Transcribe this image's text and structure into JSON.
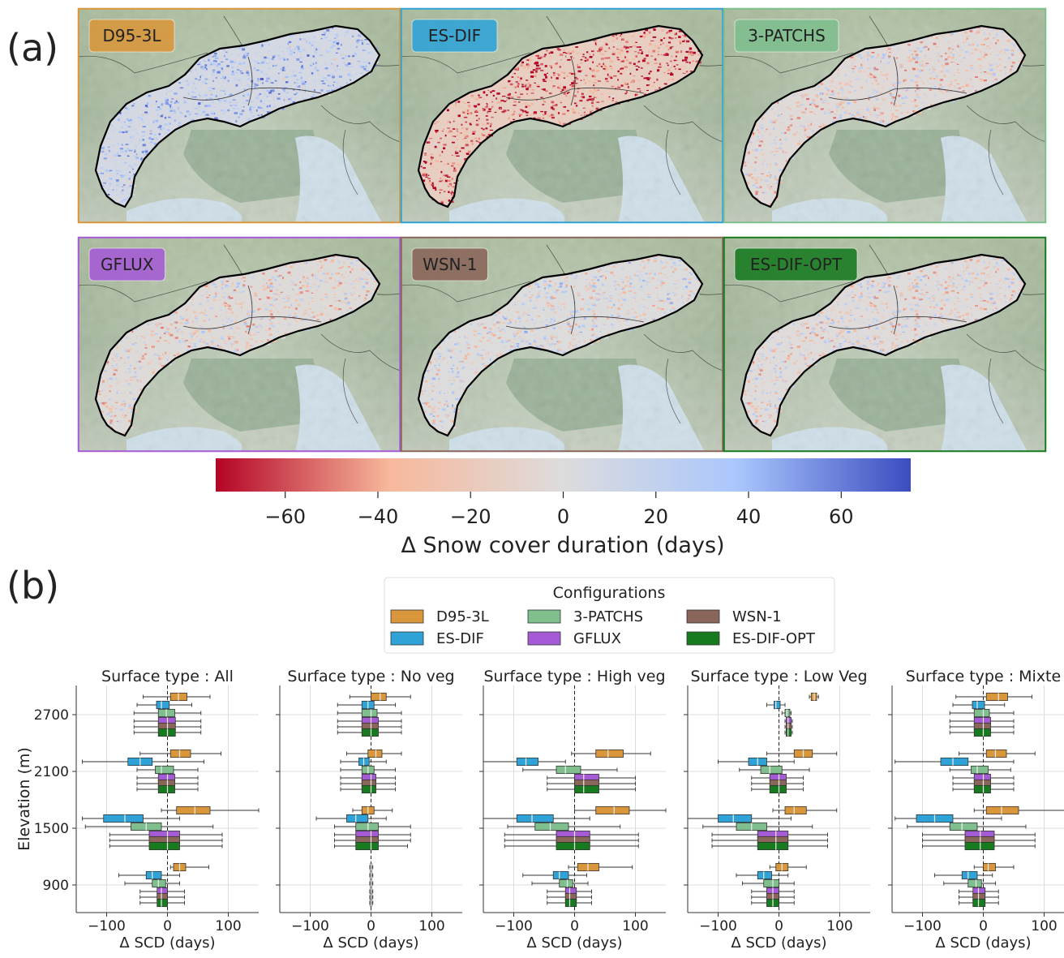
{
  "panel_labels": {
    "a": "(a)",
    "b": "(b)"
  },
  "map_configs": [
    {
      "name": "D95-3L",
      "color": "#D9963B",
      "bias": 22
    },
    {
      "name": "ES-DIF",
      "color": "#2FA3D8",
      "bias": -45
    },
    {
      "name": "3-PATCHS",
      "color": "#7FBF8E",
      "bias": -8
    },
    {
      "name": "GFLUX",
      "color": "#A55BD6",
      "bias": -6
    },
    {
      "name": "WSN-1",
      "color": "#8A655A",
      "bias": 2
    },
    {
      "name": "ES-DIF-OPT",
      "color": "#177A1F",
      "bias": -3
    }
  ],
  "colorbar": {
    "label": "Δ Snow cover duration (days)",
    "ticks": [
      "−60",
      "−40",
      "−20",
      "0",
      "20",
      "40",
      "60"
    ],
    "tick_values": [
      -60,
      -40,
      -20,
      0,
      20,
      40,
      60
    ],
    "range": [
      -75,
      75
    ],
    "colors": [
      "#B40426",
      "#F7B89C",
      "#DDDCDC",
      "#AAC7FD",
      "#3B4CC0"
    ]
  },
  "legend": {
    "title": "Configurations",
    "entries": [
      "D95-3L",
      "3-PATCHS",
      "WSN-1",
      "ES-DIF",
      "GFLUX",
      "ES-DIF-OPT"
    ]
  },
  "chart_data": {
    "type": "boxplot",
    "orientation": "horizontal",
    "ylabel": "Elevation (m)",
    "xlabel": "Δ SCD (days)",
    "y_categories": [
      900,
      1500,
      2100,
      2700
    ],
    "ytick_labels": [
      "900",
      "1500",
      "2100",
      "2700"
    ],
    "xlim": [
      -150,
      150
    ],
    "xticks": [
      -100,
      0,
      100
    ],
    "xtick_labels": [
      "−100",
      "0",
      "100"
    ],
    "series_order": [
      "D95-3L",
      "ES-DIF",
      "3-PATCHS",
      "GFLUX",
      "WSN-1",
      "ES-DIF-OPT"
    ],
    "series_colors": [
      "#D9963B",
      "#2FA3D8",
      "#7FBF8E",
      "#A55BD6",
      "#8A655A",
      "#177A1F"
    ],
    "panels": [
      {
        "title": "Surface type : All",
        "boxes": {
          "900": [
            [
              5,
              10,
              20,
              30,
              68
            ],
            [
              -80,
              -35,
              -25,
              -10,
              20
            ],
            [
              -70,
              -25,
              -15,
              -3,
              20
            ],
            [
              -45,
              -17,
              -10,
              0,
              28
            ],
            [
              -45,
              -17,
              -10,
              0,
              28
            ],
            [
              -45,
              -17,
              -10,
              0,
              28
            ]
          ],
          "1500": [
            [
              -10,
              15,
              45,
              70,
              150
            ],
            [
              -140,
              -105,
              -70,
              -40,
              20
            ],
            [
              -135,
              -60,
              -35,
              -10,
              75
            ],
            [
              -95,
              -30,
              0,
              20,
              90
            ],
            [
              -95,
              -30,
              0,
              20,
              90
            ],
            [
              -95,
              -30,
              0,
              20,
              90
            ]
          ],
          "2100": [
            [
              -45,
              5,
              20,
              38,
              88
            ],
            [
              -140,
              -65,
              -45,
              -25,
              60
            ],
            [
              -50,
              -20,
              -10,
              10,
              50
            ],
            [
              -50,
              -15,
              0,
              12,
              50
            ],
            [
              -50,
              -15,
              0,
              12,
              50
            ],
            [
              -50,
              -15,
              0,
              12,
              50
            ]
          ],
          "2700": [
            [
              -40,
              5,
              18,
              32,
              70
            ],
            [
              -50,
              -18,
              -10,
              3,
              40
            ],
            [
              -55,
              -15,
              -2,
              12,
              55
            ],
            [
              -55,
              -15,
              0,
              13,
              55
            ],
            [
              -55,
              -15,
              0,
              13,
              55
            ],
            [
              -55,
              -15,
              0,
              13,
              55
            ]
          ]
        }
      },
      {
        "title": "Surface type : No veg",
        "boxes": {
          "900": [
            [
              -2,
              -1,
              0,
              1,
              3
            ],
            [
              -2,
              -1,
              0,
              1,
              3
            ],
            [
              -2,
              -1,
              0,
              1,
              3
            ],
            [
              -2,
              -1,
              0,
              1,
              3
            ],
            [
              -2,
              -1,
              0,
              1,
              3
            ],
            [
              -2,
              -1,
              0,
              1,
              3
            ]
          ],
          "1500": [
            [
              -30,
              -15,
              -5,
              5,
              35
            ],
            [
              -90,
              -40,
              -25,
              -5,
              25
            ],
            [
              -60,
              -25,
              -5,
              12,
              65
            ],
            [
              -60,
              -25,
              0,
              12,
              65
            ],
            [
              -60,
              -25,
              0,
              12,
              65
            ],
            [
              -60,
              -25,
              0,
              12,
              60
            ]
          ],
          "2100": [
            [
              -40,
              -5,
              8,
              18,
              50
            ],
            [
              -50,
              -20,
              -12,
              -3,
              25
            ],
            [
              -50,
              -15,
              -5,
              5,
              40
            ],
            [
              -50,
              -15,
              0,
              8,
              40
            ],
            [
              -50,
              -15,
              0,
              8,
              40
            ],
            [
              -50,
              -15,
              0,
              8,
              40
            ]
          ],
          "2700": [
            [
              -35,
              0,
              15,
              25,
              65
            ],
            [
              -55,
              -15,
              -5,
              5,
              40
            ],
            [
              -55,
              -15,
              0,
              10,
              50
            ],
            [
              -55,
              -15,
              0,
              12,
              50
            ],
            [
              -55,
              -15,
              0,
              12,
              50
            ],
            [
              -55,
              -15,
              0,
              12,
              50
            ]
          ]
        }
      },
      {
        "title": "Surface type : High veg",
        "boxes": {
          "900": [
            [
              -10,
              5,
              22,
              40,
              95
            ],
            [
              -85,
              -35,
              -25,
              -10,
              20
            ],
            [
              -70,
              -25,
              -12,
              -3,
              22
            ],
            [
              -45,
              -15,
              -8,
              3,
              28
            ],
            [
              -45,
              -15,
              -8,
              3,
              28
            ],
            [
              -45,
              -15,
              -8,
              3,
              28
            ]
          ],
          "1500": [
            [
              0,
              35,
              65,
              90,
              150
            ],
            [
              -150,
              -95,
              -70,
              -35,
              25
            ],
            [
              -110,
              -65,
              -40,
              -10,
              75
            ],
            [
              -115,
              -30,
              0,
              25,
              105
            ],
            [
              -115,
              -30,
              0,
              25,
              105
            ],
            [
              -115,
              -30,
              0,
              25,
              105
            ]
          ],
          "2100": [
            [
              -5,
              35,
              55,
              80,
              125
            ],
            [
              -150,
              -95,
              -80,
              -60,
              -15
            ],
            [
              -85,
              -30,
              -15,
              10,
              70
            ],
            [
              -45,
              0,
              15,
              40,
              100
            ],
            [
              -45,
              0,
              15,
              40,
              100
            ],
            [
              -45,
              0,
              15,
              40,
              100
            ]
          ],
          "2700": []
        }
      },
      {
        "title": "Surface type : Low Veg",
        "boxes": {
          "900": [
            [
              -15,
              -5,
              5,
              15,
              45
            ],
            [
              -70,
              -35,
              -25,
              -12,
              15
            ],
            [
              -60,
              -25,
              -10,
              0,
              25
            ],
            [
              -45,
              -20,
              -10,
              0,
              25
            ],
            [
              -45,
              -20,
              -10,
              0,
              25
            ],
            [
              -45,
              -20,
              -10,
              0,
              25
            ]
          ],
          "1500": [
            [
              -10,
              10,
              25,
              45,
              95
            ],
            [
              -150,
              -100,
              -75,
              -45,
              20
            ],
            [
              -125,
              -70,
              -45,
              -20,
              55
            ],
            [
              -110,
              -35,
              -5,
              15,
              80
            ],
            [
              -110,
              -35,
              -5,
              15,
              80
            ],
            [
              -110,
              -35,
              -5,
              15,
              80
            ]
          ],
          "2100": [
            [
              -20,
              25,
              40,
              55,
              95
            ],
            [
              -100,
              -50,
              -35,
              -20,
              25
            ],
            [
              -65,
              -30,
              -15,
              5,
              50
            ],
            [
              -45,
              -15,
              0,
              12,
              40
            ],
            [
              -45,
              -15,
              0,
              12,
              40
            ],
            [
              -45,
              -15,
              0,
              12,
              40
            ]
          ],
          "2700": [
            [
              50,
              53,
              58,
              62,
              65
            ],
            [
              -20,
              -8,
              -5,
              2,
              10
            ],
            [
              5,
              10,
              13,
              18,
              20
            ],
            [
              10,
              12,
              15,
              20,
              22
            ],
            [
              10,
              12,
              15,
              20,
              22
            ],
            [
              10,
              12,
              15,
              20,
              22
            ]
          ]
        }
      },
      {
        "title": "Surface type : Mixte",
        "boxes": {
          "900": [
            [
              -15,
              0,
              8,
              20,
              50
            ],
            [
              -80,
              -35,
              -25,
              -10,
              15
            ],
            [
              -65,
              -25,
              -12,
              -3,
              20
            ],
            [
              -40,
              -17,
              -8,
              3,
              25
            ],
            [
              -40,
              -17,
              -8,
              3,
              25
            ],
            [
              -40,
              -17,
              -8,
              3,
              25
            ]
          ],
          "1500": [
            [
              -15,
              5,
              30,
              58,
              145
            ],
            [
              -145,
              -110,
              -80,
              -50,
              30
            ],
            [
              -125,
              -55,
              -35,
              -10,
              70
            ],
            [
              -100,
              -30,
              -5,
              18,
              85
            ],
            [
              -100,
              -30,
              -5,
              18,
              85
            ],
            [
              -100,
              -30,
              -5,
              18,
              85
            ]
          ],
          "2100": [
            [
              -40,
              5,
              20,
              38,
              85
            ],
            [
              -145,
              -70,
              -50,
              -25,
              50
            ],
            [
              -55,
              -20,
              -10,
              8,
              45
            ],
            [
              -50,
              -15,
              0,
              12,
              50
            ],
            [
              -50,
              -15,
              0,
              12,
              50
            ],
            [
              -50,
              -15,
              0,
              12,
              50
            ]
          ],
          "2700": [
            [
              -45,
              5,
              25,
              40,
              80
            ],
            [
              -50,
              -18,
              -10,
              2,
              35
            ],
            [
              -55,
              -15,
              0,
              10,
              50
            ],
            [
              -55,
              -15,
              0,
              12,
              50
            ],
            [
              -55,
              -15,
              0,
              12,
              50
            ],
            [
              -55,
              -15,
              0,
              12,
              50
            ]
          ]
        }
      }
    ]
  }
}
